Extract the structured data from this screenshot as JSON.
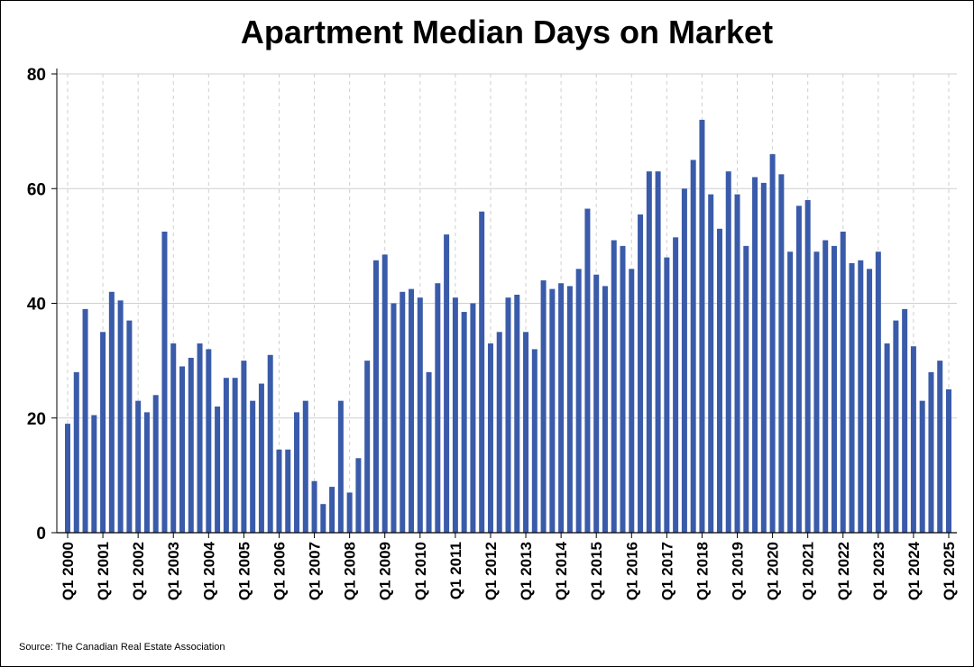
{
  "title": "Apartment Median Days on Market",
  "source": "Source: The Canadian Real Estate Association",
  "colors": {
    "bar": "#3a5ba9",
    "grid": "#cfcfcf",
    "axis": "#000000"
  },
  "chart_data": {
    "type": "bar",
    "title": "Apartment Median Days on Market",
    "xlabel": "",
    "ylabel": "",
    "ylim": [
      0,
      80
    ],
    "yticks": [
      0,
      20,
      40,
      60,
      80
    ],
    "grid": true,
    "legend": "none",
    "tick_labels": [
      "Q1 2000",
      "Q1 2001",
      "Q1 2002",
      "Q1 2003",
      "Q1 2004",
      "Q1 2005",
      "Q1 2006",
      "Q1 2007",
      "Q1 2008",
      "Q1 2009",
      "Q1 2010",
      "Q1 2011",
      "Q1 2012",
      "Q1 2013",
      "Q1 2014",
      "Q1 2015",
      "Q1 2016",
      "Q1 2017",
      "Q1 2018",
      "Q1 2019",
      "Q1 2020",
      "Q1 2021",
      "Q1 2022",
      "Q1 2023",
      "Q1 2024",
      "Q1 2025"
    ],
    "series": [
      {
        "values": [
          19,
          28,
          39,
          20.5,
          35,
          42,
          40.5,
          37,
          23,
          21,
          24,
          52.5,
          33,
          29,
          30.5,
          33,
          32,
          22,
          27,
          27,
          30,
          23,
          26,
          31,
          14.5,
          14.5,
          21,
          23,
          9,
          5,
          8,
          23,
          7,
          13,
          30,
          47.5,
          48.5,
          40,
          42,
          42.5,
          41,
          28,
          43.5,
          52,
          41,
          38.5,
          40,
          56,
          33,
          35,
          41,
          41.5,
          35,
          32,
          44,
          42.5,
          43.5,
          43,
          46,
          56.5,
          45,
          43,
          51,
          50,
          46,
          55.5,
          63,
          63,
          48,
          51.5,
          60,
          65,
          72,
          59,
          53,
          63,
          59,
          50,
          62,
          61,
          66,
          62.5,
          49,
          57,
          58,
          49,
          51,
          50,
          52.5,
          47,
          47.5,
          46,
          49,
          33,
          37,
          39,
          32.5,
          23,
          28,
          30,
          25
        ]
      }
    ]
  }
}
